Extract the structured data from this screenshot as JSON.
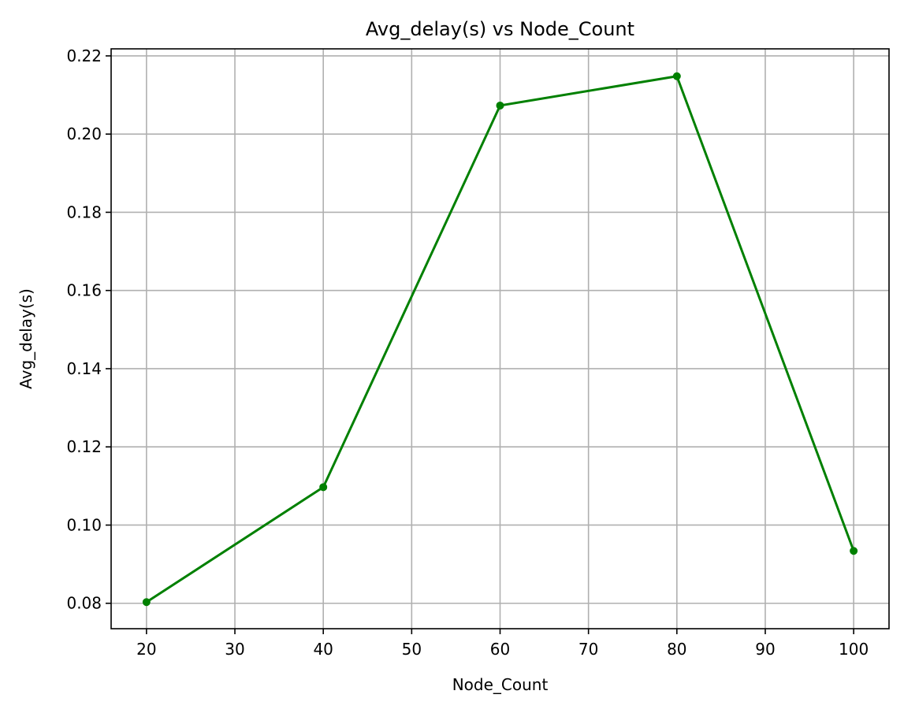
{
  "chart_data": {
    "type": "line",
    "title": "Avg_delay(s) vs Node_Count",
    "xlabel": "Node_Count",
    "ylabel": "Avg_delay(s)",
    "x": [
      20,
      40,
      60,
      80,
      100
    ],
    "series": [
      {
        "values": [
          0.0803,
          0.1097,
          0.2073,
          0.2148,
          0.0934
        ]
      }
    ],
    "xlim": [
      16,
      104
    ],
    "ylim": [
      0.0735,
      0.2218
    ],
    "xticks": [
      20,
      30,
      40,
      50,
      60,
      70,
      80,
      90,
      100
    ],
    "xtick_labels": [
      "20",
      "30",
      "40",
      "50",
      "60",
      "70",
      "80",
      "90",
      "100"
    ],
    "yticks": [
      0.08,
      0.1,
      0.12,
      0.14,
      0.16,
      0.18,
      0.2,
      0.22
    ],
    "ytick_labels": [
      "0.08",
      "0.10",
      "0.12",
      "0.14",
      "0.16",
      "0.18",
      "0.20",
      "0.22"
    ],
    "grid": true,
    "line_color": "#008000",
    "marker": "circle"
  }
}
